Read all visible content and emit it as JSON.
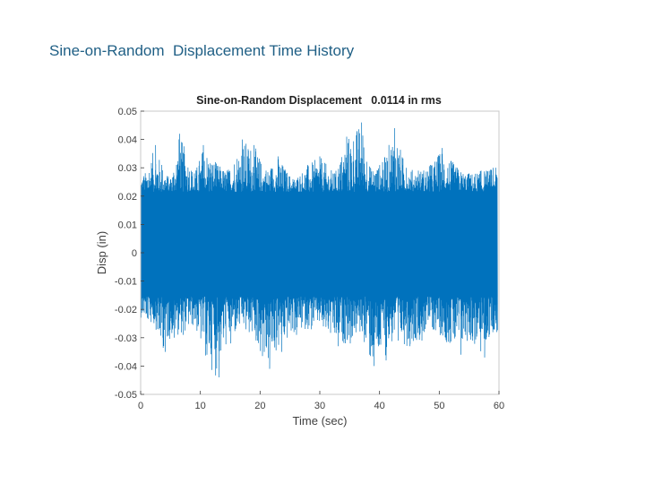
{
  "slide": {
    "title": "Sine-on-Random  Displacement Time History"
  },
  "colors": {
    "series": "#0072bd",
    "axis": "#404040",
    "grid": "#d9d9d9",
    "title_text": "#1f5f85"
  },
  "chart_data": {
    "type": "line",
    "title": "Sine-on-Random Displacement   0.0114 in rms",
    "xlabel": "Time (sec)",
    "ylabel": "Disp (in)",
    "xlim": [
      0,
      60
    ],
    "ylim": [
      -0.05,
      0.05
    ],
    "xticks": [
      0,
      10,
      20,
      30,
      40,
      50,
      60
    ],
    "xtick_labels": [
      "0",
      "10",
      "20",
      "30",
      "40",
      "50",
      "60"
    ],
    "yticks": [
      0.05,
      0.04,
      0.03,
      0.02,
      0.01,
      0,
      -0.01,
      -0.02,
      -0.03,
      -0.04,
      -0.05
    ],
    "ytick_labels": [
      "0.05",
      "0.04",
      "0.03",
      "0.02",
      "0.01",
      "0",
      "-0.01",
      "-0.02",
      "-0.03",
      "-0.04",
      "-0.05"
    ],
    "grid": false,
    "series": [
      {
        "rms": 0.0114,
        "x_range": [
          0,
          60
        ],
        "dense_band": [
          -0.0155,
          0.0215
        ],
        "envelope": [
          {
            "x": 0.5,
            "max": 0.027,
            "min": -0.023
          },
          {
            "x": 2.5,
            "max": 0.038,
            "min": -0.027
          },
          {
            "x": 3.5,
            "max": 0.031,
            "min": -0.035
          },
          {
            "x": 5,
            "max": 0.026,
            "min": -0.03
          },
          {
            "x": 6.5,
            "max": 0.042,
            "min": -0.029
          },
          {
            "x": 9,
            "max": 0.028,
            "min": -0.026
          },
          {
            "x": 10.5,
            "max": 0.038,
            "min": -0.036
          },
          {
            "x": 12.5,
            "max": 0.032,
            "min": -0.044
          },
          {
            "x": 14.5,
            "max": 0.029,
            "min": -0.032
          },
          {
            "x": 17,
            "max": 0.04,
            "min": -0.027
          },
          {
            "x": 19,
            "max": 0.038,
            "min": -0.031
          },
          {
            "x": 21,
            "max": 0.029,
            "min": -0.041
          },
          {
            "x": 23,
            "max": 0.034,
            "min": -0.035
          },
          {
            "x": 25.5,
            "max": 0.026,
            "min": -0.029
          },
          {
            "x": 28,
            "max": 0.031,
            "min": -0.027
          },
          {
            "x": 30,
            "max": 0.034,
            "min": -0.026
          },
          {
            "x": 32.5,
            "max": 0.028,
            "min": -0.033
          },
          {
            "x": 34.5,
            "max": 0.041,
            "min": -0.032
          },
          {
            "x": 37,
            "max": 0.046,
            "min": -0.029
          },
          {
            "x": 38.5,
            "max": 0.03,
            "min": -0.04
          },
          {
            "x": 40.5,
            "max": 0.032,
            "min": -0.038
          },
          {
            "x": 42.5,
            "max": 0.044,
            "min": -0.031
          },
          {
            "x": 44.5,
            "max": 0.03,
            "min": -0.033
          },
          {
            "x": 46.5,
            "max": 0.029,
            "min": -0.031
          },
          {
            "x": 48.5,
            "max": 0.031,
            "min": -0.027
          },
          {
            "x": 50.5,
            "max": 0.037,
            "min": -0.03
          },
          {
            "x": 53,
            "max": 0.03,
            "min": -0.036
          },
          {
            "x": 55,
            "max": 0.028,
            "min": -0.031
          },
          {
            "x": 57,
            "max": 0.029,
            "min": -0.037
          },
          {
            "x": 59,
            "max": 0.03,
            "min": -0.028
          }
        ]
      }
    ]
  }
}
